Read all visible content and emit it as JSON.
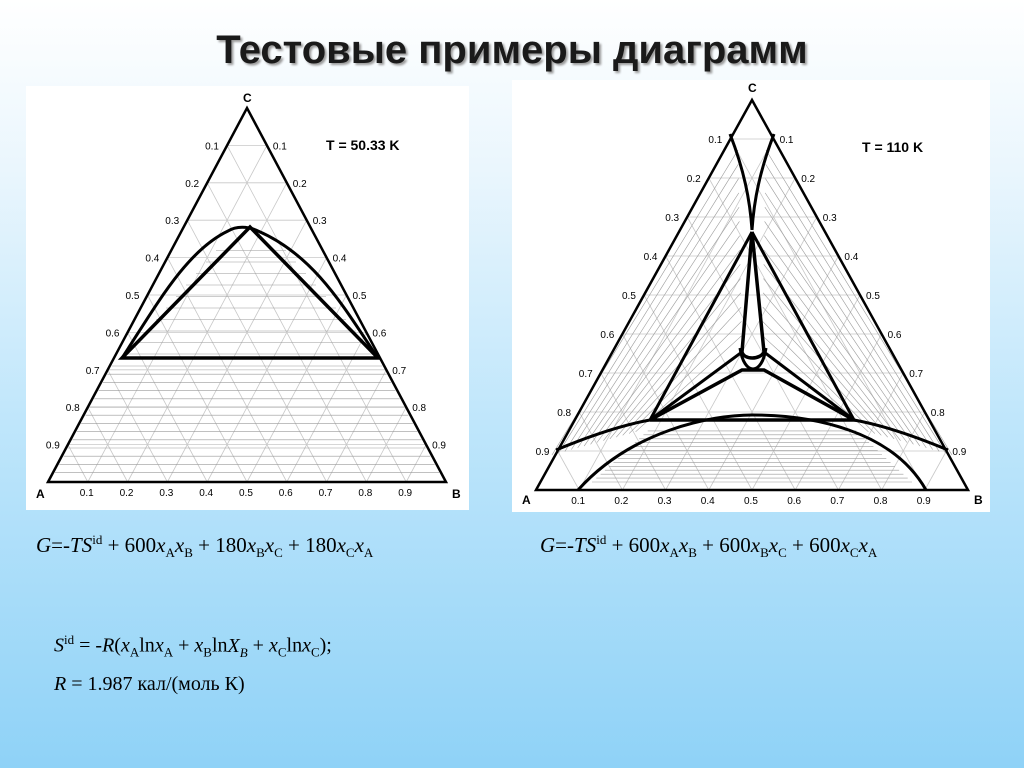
{
  "title": "Тестовые примеры диаграмм",
  "diagrams": [
    {
      "temperature_label": "T = 50.33 K",
      "vertex_labels": {
        "A": "A",
        "B": "B",
        "C": "C"
      },
      "ticks": [
        "0.1",
        "0.2",
        "0.3",
        "0.4",
        "0.5",
        "0.6",
        "0.7",
        "0.8",
        "0.9"
      ],
      "region_labels": [],
      "formula": {
        "g": "G",
        "eq": "=-",
        "ts": "TS",
        "id": "id",
        "a": "600",
        "b": "180",
        "c": "180",
        "xA": "A",
        "xB": "B",
        "xC": "C"
      }
    },
    {
      "temperature_label": "T = 110 K",
      "vertex_labels": {
        "A": "A",
        "B": "B",
        "C": "C"
      },
      "ticks": [
        "0.1",
        "0.2",
        "0.3",
        "0.4",
        "0.5",
        "0.6",
        "0.7",
        "0.8",
        "0.9"
      ],
      "formula": {
        "g": "G",
        "eq": "=-",
        "ts": "TS",
        "id": "id",
        "a": "600",
        "b": "600",
        "c": "600",
        "xA": "A",
        "xB": "B",
        "xC": "C"
      }
    }
  ],
  "entropy_formula": {
    "s": "S",
    "sup": "id",
    "rest": " = -R(x",
    "full": "Sid = -R(xAlnxA + xBlnXB + xClnxC);"
  },
  "gas_constant": {
    "r": "R",
    "value": " = 1.987 кал/(моль К)"
  }
}
